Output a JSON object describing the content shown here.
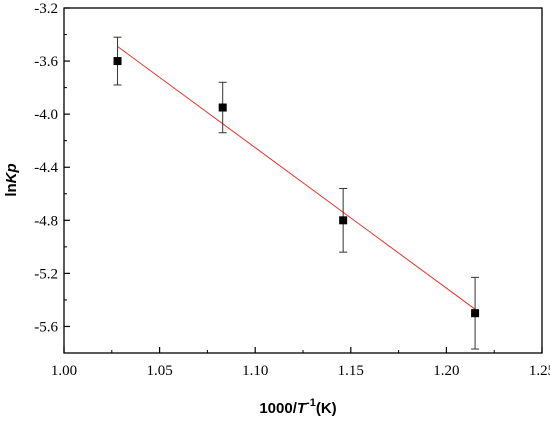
{
  "chart_data": {
    "type": "scatter",
    "xlabel_parts": [
      "1000/",
      "T",
      "-1",
      "(K)"
    ],
    "ylabel_parts": [
      "ln",
      "Kp"
    ],
    "xlim": [
      1.0,
      1.25
    ],
    "ylim": [
      -5.8,
      -3.2
    ],
    "x_ticks": [
      1.0,
      1.05,
      1.1,
      1.15,
      1.2,
      1.25
    ],
    "x_tick_labels": [
      "1.00",
      "1.05",
      "1.10",
      "1.15",
      "1.20",
      "1.25"
    ],
    "y_ticks": [
      -3.2,
      -3.6,
      -4.0,
      -4.4,
      -4.8,
      -5.2,
      -5.6
    ],
    "y_tick_labels": [
      "-3.2",
      "-3.6",
      "-4.0",
      "-4.4",
      "-4.8",
      "-5.2",
      "-5.6"
    ],
    "grid": false,
    "series": [
      {
        "x": [
          1.028,
          1.083,
          1.146,
          1.215
        ],
        "y": [
          -3.6,
          -3.95,
          -4.8,
          -5.5
        ],
        "yerr": [
          0.18,
          0.19,
          0.24,
          0.27
        ],
        "marker": "square",
        "color": "#000000"
      }
    ],
    "fit_line": {
      "x": [
        1.028,
        1.215
      ],
      "y": [
        -3.49,
        -5.47
      ],
      "color": "#e8312b"
    }
  }
}
